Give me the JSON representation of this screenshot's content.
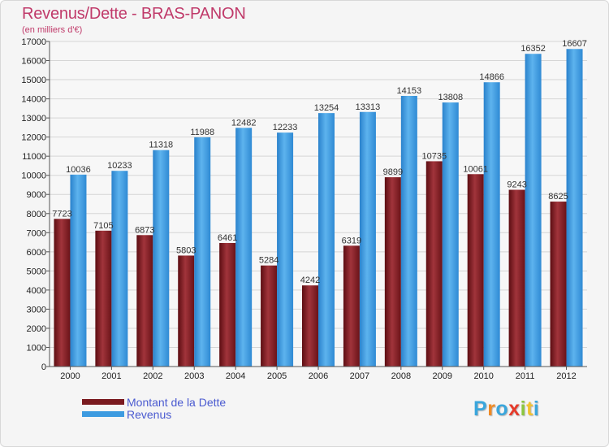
{
  "title": "Revenus/Dette - BRAS-PANON",
  "subtitle": "(en milliers d'€)",
  "logo": {
    "letters": [
      "P",
      "r",
      "o",
      "x",
      "i",
      "t",
      "i"
    ],
    "colors": [
      "#3aa6dc",
      "#f08a24",
      "#3aa6dc",
      "#e63a2a",
      "#8cc63f",
      "#f2c230",
      "#3aa6dc"
    ]
  },
  "legend": [
    {
      "name": "Montant de la Dette",
      "color": "#7a1a1f"
    },
    {
      "name": "Revenus",
      "color": "#3d9be0"
    }
  ],
  "chart_data": {
    "type": "bar",
    "title": "Revenus/Dette - BRAS-PANON",
    "ylabel": "(en milliers d'€)",
    "xlabel": "",
    "categories": [
      "2000",
      "2001",
      "2002",
      "2003",
      "2004",
      "2005",
      "2006",
      "2007",
      "2008",
      "2009",
      "2010",
      "2011",
      "2012"
    ],
    "ylim": [
      0,
      17000
    ],
    "yticks": [
      0,
      1000,
      2000,
      3000,
      4000,
      5000,
      6000,
      7000,
      8000,
      9000,
      10000,
      11000,
      12000,
      13000,
      14000,
      15000,
      16000,
      17000
    ],
    "grid": true,
    "legend_position": "bottom-left",
    "series": [
      {
        "name": "Montant de la Dette",
        "color": "#7a1a1f",
        "values": [
          7723,
          7105,
          6873,
          5803,
          6461,
          5284,
          4242,
          6319,
          9899,
          10735,
          10061,
          9243,
          8625
        ],
        "labels": [
          "7723",
          "7105",
          "6873",
          "5803",
          "6461",
          "5284",
          "4242",
          "6319",
          "9899",
          "10735",
          "10061",
          "9243",
          "8625"
        ]
      },
      {
        "name": "Revenus",
        "color": "#3d9be0",
        "values": [
          10036,
          10233,
          11318,
          11988,
          12482,
          12233,
          13254,
          13313,
          14153,
          13808,
          14866,
          16352,
          16607
        ],
        "labels": [
          "10036",
          "10233",
          "11318",
          "11988",
          "12482",
          "12233",
          "13254",
          "13313",
          "14153",
          "13808",
          "14866",
          "16352",
          "16607"
        ]
      }
    ]
  }
}
